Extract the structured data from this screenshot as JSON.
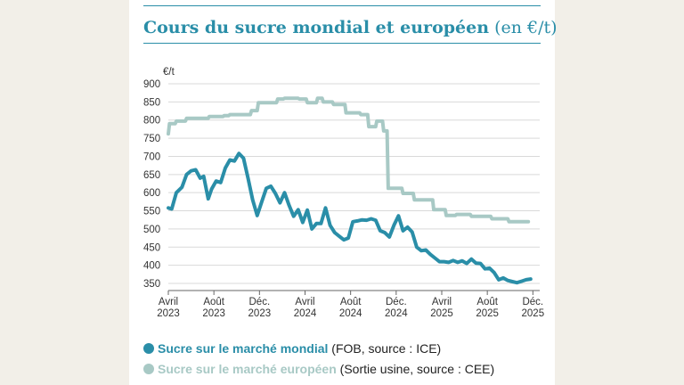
{
  "title": {
    "main": "Cours du sucre mondial et européen",
    "unit": "(en €/t)"
  },
  "legend": [
    {
      "name": "Sucre sur le marché mondial",
      "note": "(FOB, source : ICE)",
      "color": "#2a8ea8"
    },
    {
      "name": "Sucre sur le marché européen",
      "note": "(Sortie usine, source : CEE)",
      "color": "#a8c9c5"
    }
  ],
  "chart_data": {
    "type": "line",
    "ylabel": "€/t",
    "ylim": [
      350,
      900
    ],
    "yticks": [
      350,
      400,
      450,
      500,
      550,
      600,
      650,
      700,
      750,
      800,
      850,
      900
    ],
    "xlim": [
      0,
      32.6
    ],
    "xticks": [
      {
        "pos": 0,
        "line1": "Avril",
        "line2": "2023"
      },
      {
        "pos": 4,
        "line1": "Août",
        "line2": "2023"
      },
      {
        "pos": 8,
        "line1": "Déc.",
        "line2": "2023"
      },
      {
        "pos": 12,
        "line1": "Avril",
        "line2": "2024"
      },
      {
        "pos": 16,
        "line1": "Août",
        "line2": "2024"
      },
      {
        "pos": 20,
        "line1": "Déc.",
        "line2": "2024"
      },
      {
        "pos": 24,
        "line1": "Avril",
        "line2": "2025"
      },
      {
        "pos": 28,
        "line1": "Août",
        "line2": "2025"
      },
      {
        "pos": 32,
        "line1": "Déc.",
        "line2": "2025"
      }
    ],
    "grid": true,
    "series": [
      {
        "name": "Sucre sur le marché européen",
        "color": "#a8c9c5",
        "x": [
          0,
          0.1,
          0.6,
          0.7,
          1.5,
          1.6,
          2.3,
          2.4,
          3.5,
          3.6,
          4.8,
          4.9,
          5.3,
          5.4,
          7.2,
          7.3,
          7.8,
          7.9,
          8.2,
          8.3,
          9.5,
          9.6,
          10.1,
          10.2,
          11.4,
          11.5,
          12.1,
          12.2,
          13.0,
          13.1,
          13.5,
          13.6,
          14.4,
          14.5,
          15.5,
          15.6,
          16.8,
          16.9,
          17.5,
          17.6,
          18.2,
          18.3,
          18.8,
          18.9,
          19.2,
          19.3,
          20.5,
          20.6,
          21.5,
          21.6,
          23.2,
          23.3,
          24.3,
          24.4,
          25.2,
          25.3,
          26.5,
          26.6,
          28.3,
          28.4,
          29.8,
          29.9,
          31.6
        ],
        "y": [
          762,
          790,
          790,
          797,
          797,
          805,
          805,
          805,
          805,
          810,
          810,
          812,
          812,
          815,
          815,
          826,
          826,
          848,
          848,
          848,
          848,
          858,
          858,
          860,
          860,
          858,
          858,
          848,
          848,
          860,
          860,
          850,
          850,
          843,
          843,
          820,
          820,
          815,
          815,
          782,
          782,
          797,
          797,
          770,
          770,
          612,
          612,
          598,
          598,
          580,
          580,
          553,
          553,
          537,
          537,
          540,
          540,
          535,
          535,
          528,
          528,
          520,
          520
        ]
      },
      {
        "name": "Sucre sur le marché mondial",
        "color": "#2a8ea8",
        "x": [
          0,
          0.3,
          0.7,
          1.2,
          1.6,
          2.0,
          2.4,
          2.8,
          3.1,
          3.5,
          3.8,
          4.2,
          4.6,
          5.0,
          5.4,
          5.8,
          6.2,
          6.6,
          7.0,
          7.4,
          7.8,
          8.2,
          8.6,
          9.0,
          9.4,
          9.8,
          10.2,
          10.6,
          11.0,
          11.4,
          11.8,
          12.2,
          12.6,
          13.0,
          13.4,
          13.8,
          14.2,
          14.6,
          15.0,
          15.4,
          15.8,
          16.2,
          16.6,
          17.0,
          17.4,
          17.8,
          18.2,
          18.6,
          19.0,
          19.4,
          19.8,
          20.2,
          20.6,
          21.0,
          21.4,
          21.8,
          22.2,
          22.6,
          23.0,
          23.4,
          23.8,
          24.2,
          24.6,
          25.0,
          25.4,
          25.8,
          26.2,
          26.6,
          27.0,
          27.4,
          27.8,
          28.2,
          28.6,
          29.0,
          29.4,
          29.8,
          30.2,
          30.6,
          31.0,
          31.4,
          31.8
        ],
        "y": [
          558,
          555,
          600,
          615,
          650,
          660,
          663,
          640,
          645,
          583,
          610,
          632,
          628,
          668,
          690,
          687,
          708,
          695,
          640,
          580,
          537,
          575,
          612,
          618,
          598,
          572,
          600,
          565,
          535,
          553,
          518,
          552,
          500,
          515,
          515,
          558,
          510,
          490,
          480,
          470,
          475,
          520,
          522,
          525,
          524,
          528,
          524,
          495,
          490,
          478,
          510,
          536,
          495,
          505,
          492,
          450,
          440,
          442,
          430,
          420,
          410,
          410,
          408,
          413,
          408,
          412,
          405,
          417,
          406,
          405,
          390,
          392,
          380,
          360,
          365,
          358,
          355,
          352,
          356,
          360,
          362
        ]
      }
    ]
  }
}
